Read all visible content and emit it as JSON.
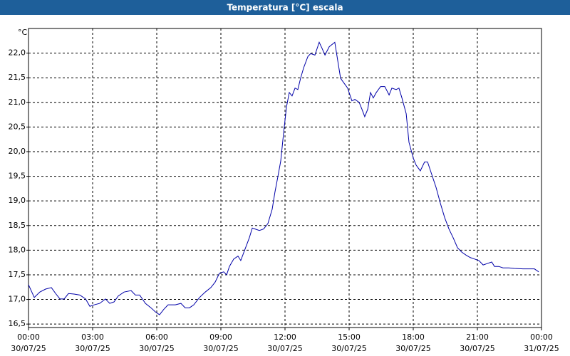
{
  "chart_data": {
    "type": "line",
    "title": "Temperatura [°C] escala",
    "y_label": "°C",
    "color": "#0000a8",
    "grid": true,
    "xlim": [
      0,
      24
    ],
    "xticks": [
      {
        "value": 0,
        "label": "00:00"
      },
      {
        "value": 3,
        "label": "03:00"
      },
      {
        "value": 6,
        "label": "06:00"
      },
      {
        "value": 9,
        "label": "09:00"
      },
      {
        "value": 12,
        "label": "12:00"
      },
      {
        "value": 15,
        "label": "15:00"
      },
      {
        "value": 18,
        "label": "18:00"
      },
      {
        "value": 21,
        "label": "21:00"
      },
      {
        "value": 24,
        "label": "00:00"
      }
    ],
    "xtick_dates": [
      "30/07/25",
      "30/07/25",
      "30/07/25",
      "30/07/25",
      "30/07/25",
      "30/07/25",
      "30/07/25",
      "30/07/25",
      "31/07/25"
    ],
    "ylim": [
      16.43,
      22.5
    ],
    "yticks": [
      {
        "value": 16.5,
        "label": "16,5"
      },
      {
        "value": 17,
        "label": "17,0"
      },
      {
        "value": 17.5,
        "label": "17,5"
      },
      {
        "value": 18,
        "label": "18,0"
      },
      {
        "value": 18.5,
        "label": "18,5"
      },
      {
        "value": 19,
        "label": "19,0"
      },
      {
        "value": 19.5,
        "label": "19,5"
      },
      {
        "value": 20,
        "label": "20,0"
      },
      {
        "value": 20.5,
        "label": "20,5"
      },
      {
        "value": 21,
        "label": "21,0"
      },
      {
        "value": 21.5,
        "label": "21,5"
      },
      {
        "value": 22,
        "label": "22,0"
      }
    ],
    "x": [
      0,
      0.27,
      0.53,
      0.8,
      1.07,
      1.27,
      1.47,
      1.67,
      1.87,
      2.13,
      2.4,
      2.67,
      2.87,
      3.07,
      3.33,
      3.6,
      3.8,
      4,
      4.2,
      4.47,
      4.8,
      5,
      5.2,
      5.47,
      5.73,
      5.93,
      6.13,
      6.33,
      6.53,
      6.87,
      7.13,
      7.33,
      7.53,
      7.73,
      8,
      8.27,
      8.53,
      8.73,
      8.93,
      9.13,
      9.27,
      9.4,
      9.6,
      9.8,
      9.93,
      10.13,
      10.33,
      10.47,
      10.6,
      10.8,
      11,
      11.2,
      11.4,
      11.53,
      11.67,
      11.8,
      11.93,
      12.07,
      12.2,
      12.33,
      12.47,
      12.6,
      12.73,
      12.87,
      13.07,
      13.2,
      13.4,
      13.6,
      13.73,
      13.87,
      14.07,
      14.33,
      14.47,
      14.6,
      14.73,
      14.93,
      15.13,
      15.27,
      15.47,
      15.6,
      15.73,
      15.87,
      16,
      16.13,
      16.27,
      16.47,
      16.67,
      16.87,
      17,
      17.2,
      17.33,
      17.47,
      17.67,
      17.8,
      18,
      18.13,
      18.33,
      18.53,
      18.67,
      18.87,
      19.07,
      19.27,
      19.47,
      19.67,
      19.87,
      20.07,
      20.27,
      20.47,
      20.67,
      20.87,
      21.07,
      21.27,
      21.47,
      21.67,
      21.8,
      22,
      22.2,
      22.47,
      22.73,
      23.13,
      23.4,
      23.67,
      23.87
    ],
    "values": [
      17.3,
      17.04,
      17.15,
      17.21,
      17.24,
      17.12,
      17.01,
      17.01,
      17.12,
      17.11,
      17.09,
      17.01,
      16.86,
      16.89,
      16.92,
      17.01,
      16.92,
      16.95,
      17.07,
      17.15,
      17.18,
      17.09,
      17.09,
      16.92,
      16.83,
      16.75,
      16.69,
      16.8,
      16.89,
      16.89,
      16.92,
      16.83,
      16.83,
      16.89,
      17.04,
      17.15,
      17.24,
      17.35,
      17.53,
      17.56,
      17.5,
      17.67,
      17.82,
      17.88,
      17.79,
      18.02,
      18.25,
      18.45,
      18.43,
      18.4,
      18.43,
      18.54,
      18.83,
      19.18,
      19.5,
      19.81,
      20.36,
      20.91,
      21.2,
      21.13,
      21.29,
      21.26,
      21.49,
      21.7,
      21.93,
      21.99,
      21.96,
      22.22,
      22.1,
      21.96,
      22.13,
      22.22,
      21.84,
      21.49,
      21.41,
      21.29,
      21.03,
      21.06,
      21.0,
      20.86,
      20.71,
      20.86,
      21.2,
      21.09,
      21.2,
      21.32,
      21.32,
      21.15,
      21.29,
      21.26,
      21.29,
      21.09,
      20.77,
      20.19,
      19.87,
      19.73,
      19.61,
      19.79,
      19.79,
      19.53,
      19.27,
      18.95,
      18.66,
      18.43,
      18.25,
      18.05,
      17.96,
      17.9,
      17.85,
      17.82,
      17.79,
      17.7,
      17.73,
      17.76,
      17.67,
      17.67,
      17.64,
      17.64,
      17.63,
      17.62,
      17.62,
      17.62,
      17.56
    ]
  }
}
